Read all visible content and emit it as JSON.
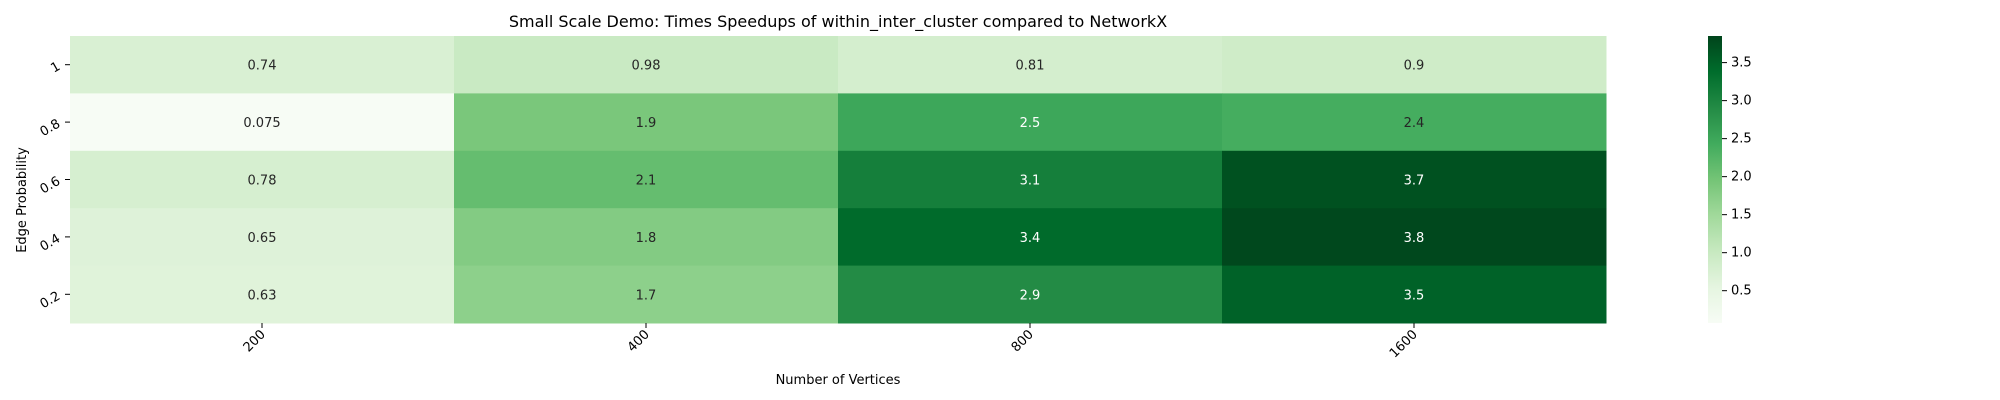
{
  "chart_data": {
    "type": "heatmap",
    "title": "Small Scale Demo: Times Speedups of within_inter_cluster compared to NetworkX",
    "xlabel": "Number of Vertices",
    "ylabel": "Edge Probability",
    "x_categories": [
      "200",
      "400",
      "800",
      "1600"
    ],
    "y_categories": [
      "1",
      "0.8",
      "0.6",
      "0.4",
      "0.2"
    ],
    "values": [
      [
        0.74,
        0.98,
        0.81,
        0.9
      ],
      [
        0.075,
        1.9,
        2.5,
        2.4
      ],
      [
        0.78,
        2.1,
        3.1,
        3.7
      ],
      [
        0.65,
        1.8,
        3.4,
        3.8
      ],
      [
        0.63,
        1.7,
        2.9,
        3.5
      ]
    ],
    "value_labels": [
      [
        "0.74",
        "0.98",
        "0.81",
        "0.9"
      ],
      [
        "0.075",
        "1.9",
        "2.5",
        "2.4"
      ],
      [
        "0.78",
        "2.1",
        "3.1",
        "3.7"
      ],
      [
        "0.65",
        "1.8",
        "3.4",
        "3.8"
      ],
      [
        "0.63",
        "1.7",
        "2.9",
        "3.5"
      ]
    ],
    "colormap": "Greens",
    "vmin": 0.075,
    "vmax": 3.85,
    "colorbar": {
      "position": "right",
      "ticks": [
        0.5,
        1.0,
        1.5,
        2.0,
        2.5,
        3.0,
        3.5
      ],
      "tick_labels": [
        "0.5",
        "1.0",
        "1.5",
        "2.0",
        "2.5",
        "3.0",
        "3.5"
      ]
    },
    "grid": false
  }
}
